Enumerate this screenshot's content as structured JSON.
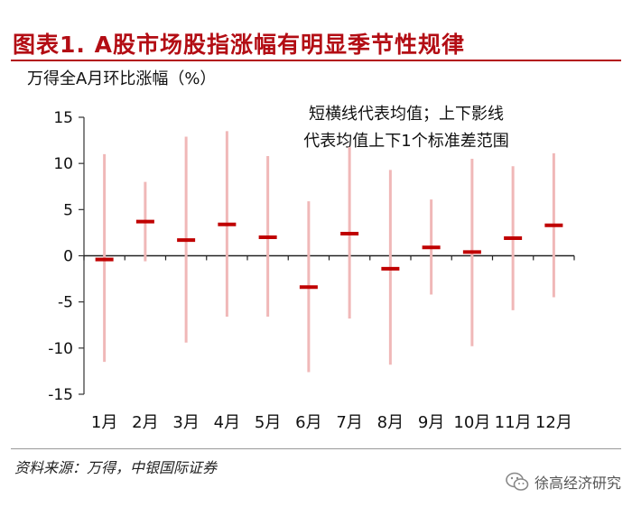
{
  "figure": {
    "title": "图表1. A股市场股指涨幅有明显季节性规律"
  },
  "source": "资料来源：万得，中银国际证券",
  "watermark": {
    "icon": "wechat-icon",
    "text": "徐高经济研究"
  },
  "colors": {
    "title": "#b30d14",
    "mean_marker": "#c00000",
    "std_range": "#f0b8b8"
  },
  "chart_data": {
    "type": "errorbar",
    "ylabel": "万得全A月环比涨幅（%）",
    "annotation": [
      "短横线代表均值；上下影线",
      "代表均值上下1个标准差范围"
    ],
    "categories": [
      "1月",
      "2月",
      "3月",
      "4月",
      "5月",
      "6月",
      "7月",
      "8月",
      "9月",
      "10月",
      "11月",
      "12月"
    ],
    "series": [
      {
        "values": [
          -0.4,
          3.7,
          1.7,
          3.4,
          2.0,
          -3.4,
          2.4,
          -1.4,
          0.9,
          0.4,
          1.9,
          3.3
        ]
      }
    ],
    "ranges": [
      [
        -11.5,
        11.0
      ],
      [
        -0.6,
        8.0
      ],
      [
        -9.4,
        12.9
      ],
      [
        -6.6,
        13.5
      ],
      [
        -6.6,
        10.8
      ],
      [
        -12.6,
        5.9
      ],
      [
        -6.8,
        11.8
      ],
      [
        -11.8,
        9.3
      ],
      [
        -4.2,
        6.1
      ],
      [
        -9.8,
        10.5
      ],
      [
        -5.9,
        9.7
      ],
      [
        -4.5,
        11.1
      ]
    ],
    "ylim": [
      -15,
      15
    ],
    "yticks": [
      15,
      10,
      5,
      0,
      -5,
      -10,
      -15
    ],
    "grid": false,
    "legend": "none"
  }
}
